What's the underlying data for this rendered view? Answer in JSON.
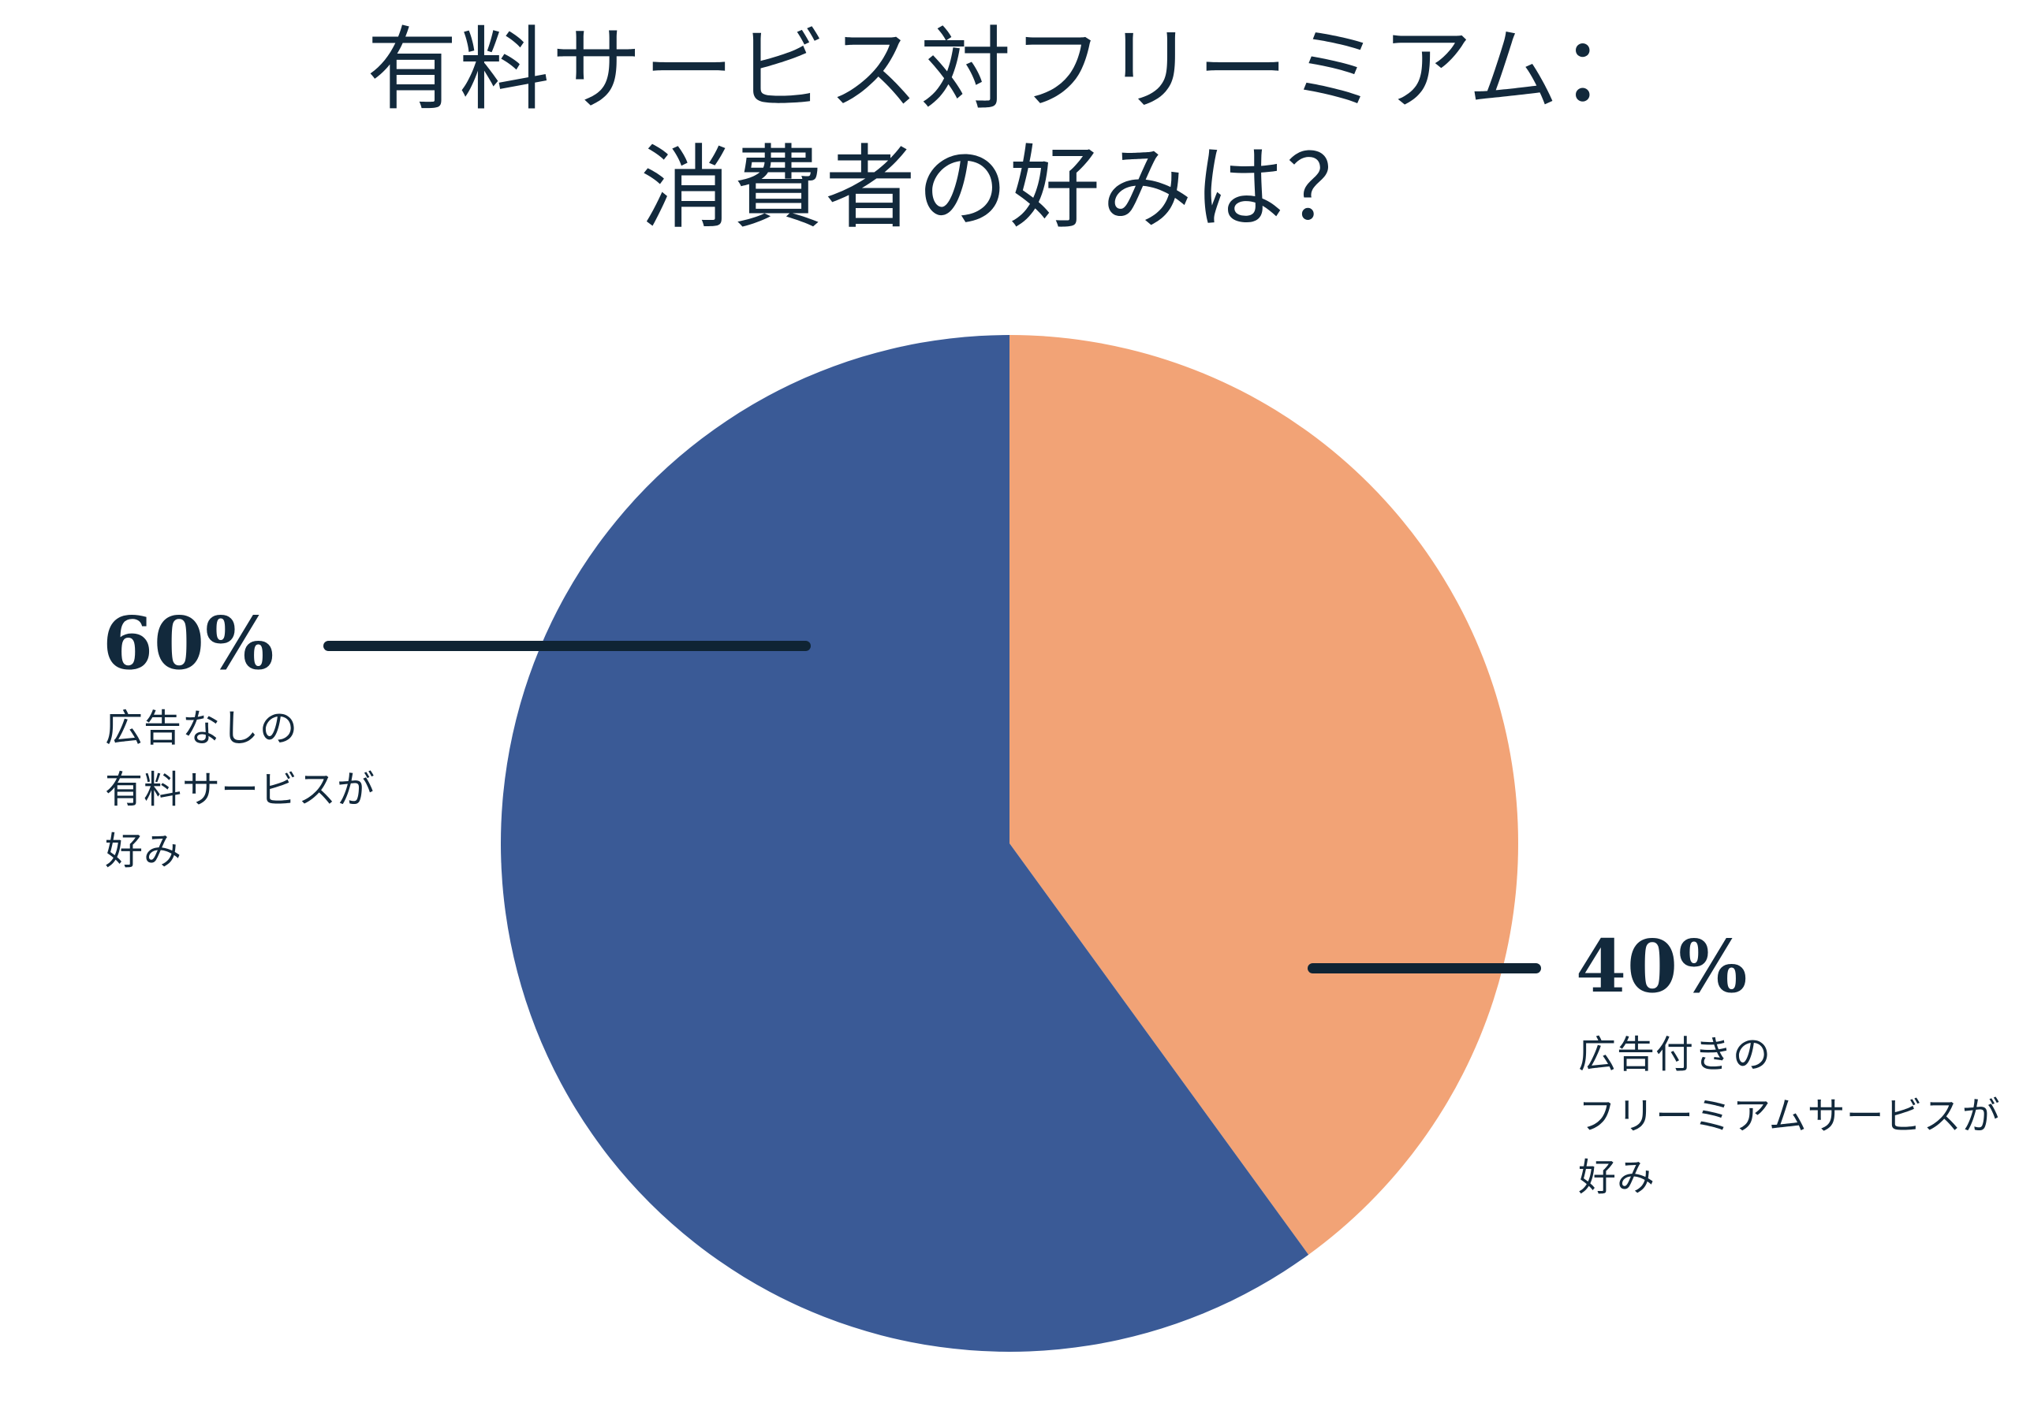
{
  "colors": {
    "text_navy": "#12293C",
    "line_navy": "#0F2434",
    "background": "#FFFFFF"
  },
  "title": {
    "line1": "有料サービス対フリーミアム：",
    "line2": "消費者の好みは？"
  },
  "chart_data": {
    "type": "pie",
    "title": "有料サービス対フリーミアム：消費者の好みは？",
    "start_angle_deg": 0,
    "direction": "clockwise-from-12-oclock",
    "legend": "none",
    "labels_position": "outside-with-leader-lines",
    "slices": [
      {
        "label": "40%",
        "value": 40,
        "color": "#F2A376",
        "side": "right",
        "description_lines": [
          "広告付きの",
          "フリーミアムサービスが",
          "好み"
        ]
      },
      {
        "label": "60%",
        "value": 60,
        "color": "#3A5A96",
        "side": "left",
        "description_lines": [
          "広告なしの",
          "有料サービスが",
          "好み"
        ]
      }
    ]
  }
}
